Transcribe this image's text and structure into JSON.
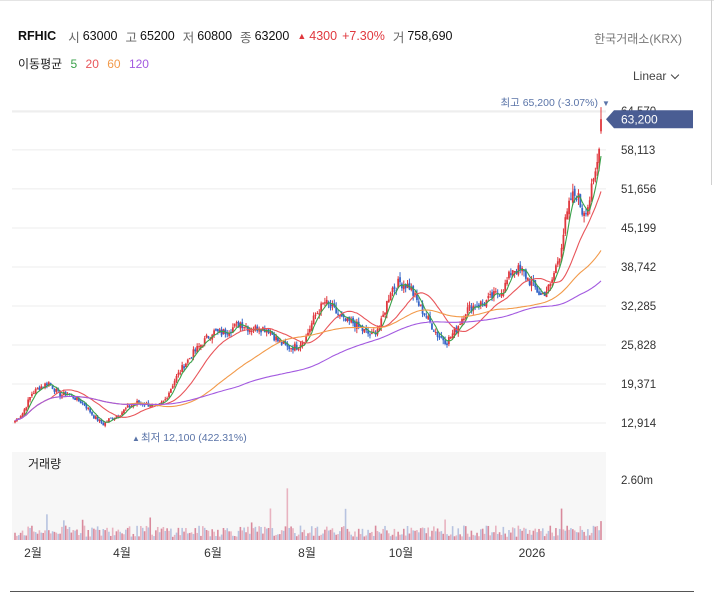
{
  "header": {
    "symbol": "RFHIC",
    "open_label": "시",
    "open": "63000",
    "high_label": "고",
    "high": "65200",
    "low_label": "저",
    "low": "60800",
    "close_label": "종",
    "close": "63200",
    "change_arrow": "▲",
    "change": "4300",
    "change_pct": "+7.30%",
    "volume_label": "거",
    "volume": "758,690",
    "exchange": "한국거래소(KRX)"
  },
  "ma_legend": {
    "label": "이동평균",
    "p5": "5",
    "p20": "20",
    "p60": "60",
    "p120": "120"
  },
  "scale": {
    "label": "Linear"
  },
  "colors": {
    "up": "#e0383e",
    "down": "#3566c8",
    "ma5": "#3aa14a",
    "ma20": "#e8555a",
    "ma60": "#f29a4a",
    "ma120": "#a35ae0",
    "price_tag": "#4a5d93",
    "marker_text": "#5a74a8"
  },
  "chart_data": [
    {
      "type": "candlestick",
      "x_ticks": [
        "2월",
        "4월",
        "6월",
        "8월",
        "10월",
        "2026"
      ],
      "y_ticks": [
        "12,914",
        "19,371",
        "25,828",
        "32,285",
        "38,742",
        "45,199",
        "51,656",
        "58,113",
        "64,570"
      ],
      "ylim": [
        10100,
        67700
      ],
      "last_price": "63,200",
      "high_marker": {
        "label": "최고",
        "value": "65,200",
        "pct": "(-3.07%)",
        "arrow": "▼"
      },
      "low_marker": {
        "label": "최저",
        "value": "12,100",
        "pct": "(422.31%)",
        "arrow": "▲"
      },
      "series": [
        {
          "name": "price",
          "anchors": [
            [
              0,
              13300
            ],
            [
              4,
              14500
            ],
            [
              9,
              17800
            ],
            [
              14,
              19000
            ],
            [
              18,
              19600
            ],
            [
              21,
              18500
            ],
            [
              24,
              17500
            ],
            [
              28,
              17800
            ],
            [
              32,
              17000
            ],
            [
              37,
              16000
            ],
            [
              42,
              14000
            ],
            [
              47,
              12700
            ],
            [
              50,
              13500
            ],
            [
              55,
              14200
            ],
            [
              60,
              15500
            ],
            [
              65,
              16300
            ],
            [
              70,
              16000
            ],
            [
              76,
              15600
            ],
            [
              80,
              16800
            ],
            [
              85,
              20000
            ],
            [
              90,
              22500
            ],
            [
              95,
              24500
            ],
            [
              100,
              26200
            ],
            [
              105,
              28000
            ],
            [
              110,
              27800
            ],
            [
              115,
              28500
            ],
            [
              120,
              29500
            ],
            [
              125,
              28500
            ],
            [
              130,
              28700
            ],
            [
              135,
              28400
            ],
            [
              140,
              26500
            ],
            [
              145,
              25400
            ],
            [
              150,
              25600
            ],
            [
              155,
              27200
            ],
            [
              160,
              30800
            ],
            [
              165,
              32900
            ],
            [
              170,
              31500
            ],
            [
              175,
              29800
            ],
            [
              180,
              29500
            ],
            [
              185,
              28300
            ],
            [
              190,
              27300
            ],
            [
              195,
              29500
            ],
            [
              200,
              35000
            ],
            [
              205,
              36200
            ],
            [
              210,
              35500
            ],
            [
              215,
              32500
            ],
            [
              220,
              30000
            ],
            [
              225,
              27500
            ],
            [
              230,
              26400
            ],
            [
              235,
              28500
            ],
            [
              240,
              31500
            ],
            [
              245,
              32500
            ],
            [
              250,
              32800
            ],
            [
              255,
              34000
            ],
            [
              260,
              35000
            ],
            [
              265,
              38500
            ],
            [
              270,
              38000
            ],
            [
              275,
              36000
            ],
            [
              280,
              34000
            ],
            [
              285,
              35500
            ],
            [
              290,
              41000
            ],
            [
              293,
              46000
            ],
            [
              296,
              50000
            ],
            [
              299,
              51000
            ],
            [
              302,
              48000
            ],
            [
              305,
              49000
            ],
            [
              308,
              52500
            ],
            [
              310,
              56000
            ],
            [
              312,
              63200
            ]
          ]
        },
        {
          "name": "volume",
          "scale_max": "2.60m"
        }
      ]
    }
  ]
}
